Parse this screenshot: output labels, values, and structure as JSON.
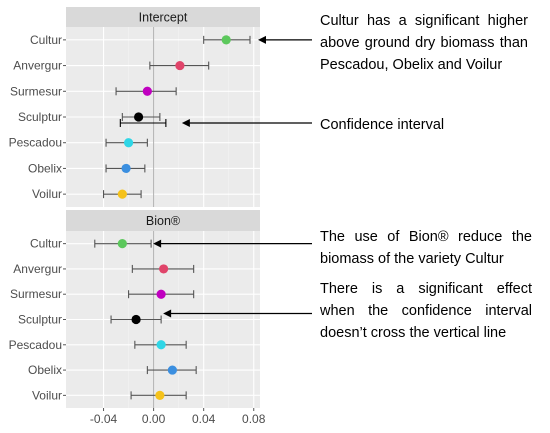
{
  "chart_data": [
    {
      "type": "scatter",
      "facet": "Intercept",
      "categories": [
        "Cultur",
        "Anvergur",
        "Surmesur",
        "Sculptur",
        "Pescadou",
        "Obelix",
        "Voilur"
      ],
      "estimate": [
        0.058,
        0.021,
        -0.005,
        -0.012,
        -0.02,
        -0.022,
        -0.025
      ],
      "ci_low": [
        0.04,
        -0.003,
        -0.03,
        -0.025,
        -0.038,
        -0.038,
        -0.04
      ],
      "ci_high": [
        0.077,
        0.044,
        0.018,
        0.005,
        -0.005,
        -0.007,
        -0.01
      ],
      "colors": [
        "#5cc85c",
        "#e0446a",
        "#c000c0",
        "#000000",
        "#2fd6e6",
        "#3b8fe0",
        "#f5c21b"
      ]
    },
    {
      "type": "scatter",
      "facet": "Bion®",
      "categories": [
        "Cultur",
        "Anvergur",
        "Surmesur",
        "Sculptur",
        "Pescadou",
        "Obelix",
        "Voilur"
      ],
      "estimate": [
        -0.025,
        0.008,
        0.006,
        -0.014,
        0.006,
        0.015,
        0.005
      ],
      "ci_low": [
        -0.047,
        -0.017,
        -0.02,
        -0.034,
        -0.015,
        -0.005,
        -0.018
      ],
      "ci_high": [
        -0.002,
        0.032,
        0.032,
        0.006,
        0.026,
        0.034,
        0.026
      ],
      "colors": [
        "#5cc85c",
        "#e0446a",
        "#c000c0",
        "#000000",
        "#2fd6e6",
        "#3b8fe0",
        "#f5c21b"
      ]
    }
  ],
  "axis": {
    "xlim": [
      -0.07,
      0.085
    ],
    "ticks": [
      -0.04,
      0.0,
      0.04,
      0.08
    ],
    "tick_labels": [
      "-0.04",
      "0.00",
      "0.04",
      "0.08"
    ],
    "zero_line": 0
  },
  "annotations": {
    "a1": {
      "lines": [
        "Cultur has a significant higher",
        "above ground dry biomass than",
        "Pescadou, Obelix and Voilur"
      ]
    },
    "a2": {
      "text": "Confidence interval"
    },
    "a3": {
      "lines": [
        "The use of Bion® reduce the",
        "biomass of the variety Cultur"
      ]
    },
    "a4": {
      "lines": [
        "There is a significant effect",
        "when the confidence interval",
        "doesn’t cross the vertical line"
      ]
    }
  },
  "colors": {
    "panel_bg": "#ebebeb",
    "strip_bg": "#d9d9d9",
    "grid_major": "#ffffff",
    "grid_minor": "#f4f4f4",
    "errorbar": "#555555"
  }
}
